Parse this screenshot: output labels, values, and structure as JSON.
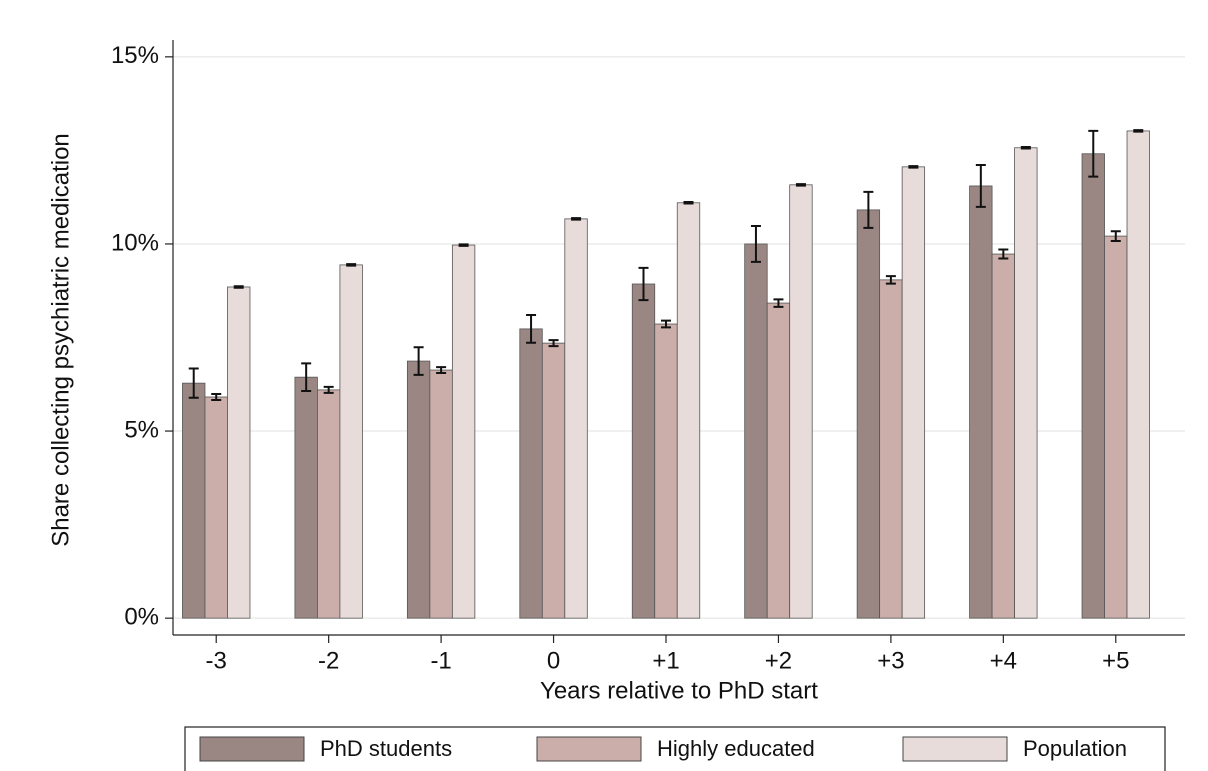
{
  "chart_data": {
    "type": "bar",
    "categories": [
      "-3",
      "-2",
      "-1",
      "0",
      "+1",
      "+2",
      "+3",
      "+4",
      "+5"
    ],
    "series": [
      {
        "name": "PhD students",
        "color": "#9a8784",
        "values": [
          6.28,
          6.44,
          6.87,
          7.73,
          8.93,
          10.0,
          10.91,
          11.55,
          12.41
        ],
        "errors": [
          0.39,
          0.37,
          0.37,
          0.37,
          0.43,
          0.48,
          0.48,
          0.56,
          0.61
        ]
      },
      {
        "name": "Highly educated",
        "color": "#cbaea9",
        "values": [
          5.91,
          6.1,
          6.63,
          7.35,
          7.86,
          8.42,
          9.04,
          9.73,
          10.21
        ],
        "errors": [
          0.08,
          0.08,
          0.08,
          0.08,
          0.09,
          0.1,
          0.1,
          0.12,
          0.13
        ]
      },
      {
        "name": "Population",
        "color": "#e8dcdb",
        "values": [
          8.85,
          9.44,
          9.97,
          10.67,
          11.1,
          11.58,
          12.06,
          12.57,
          13.02
        ],
        "errors": [
          0.02,
          0.02,
          0.02,
          0.02,
          0.02,
          0.02,
          0.02,
          0.02,
          0.02
        ]
      }
    ],
    "xlabel": "Years relative to PhD start",
    "ylabel": "Share collecting psychiatric medication",
    "ylim": [
      -0.45,
      15.45
    ],
    "yticks": [
      {
        "value": 0,
        "label": "0%"
      },
      {
        "value": 5,
        "label": "5%"
      },
      {
        "value": 10,
        "label": "10%"
      },
      {
        "value": 15,
        "label": "15%"
      }
    ],
    "grid": true,
    "legend": "bottom"
  }
}
